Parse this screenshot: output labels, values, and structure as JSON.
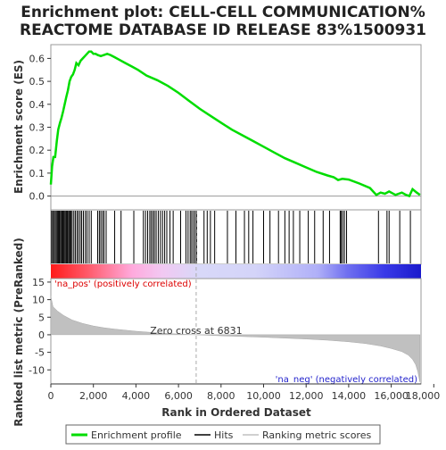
{
  "chart_data": {
    "type": "line",
    "title_line1": "Enrichment plot: CELL-CELL COMMUNICATION%",
    "title_line2": "REACTOME DATABASE ID RELEASE 83%1500931",
    "top_panel": {
      "ylabel": "Enrichment score (ES)",
      "ylim": [
        -0.06,
        0.66
      ],
      "yticks": [
        0.0,
        0.1,
        0.2,
        0.3,
        0.4,
        0.5,
        0.6
      ],
      "series_color": "#00dd00",
      "es_points": [
        [
          0,
          0.05
        ],
        [
          60,
          0.13
        ],
        [
          120,
          0.17
        ],
        [
          200,
          0.17
        ],
        [
          280,
          0.24
        ],
        [
          350,
          0.29
        ],
        [
          430,
          0.32
        ],
        [
          500,
          0.34
        ],
        [
          580,
          0.37
        ],
        [
          650,
          0.4
        ],
        [
          720,
          0.43
        ],
        [
          800,
          0.46
        ],
        [
          880,
          0.5
        ],
        [
          960,
          0.52
        ],
        [
          1040,
          0.53
        ],
        [
          1120,
          0.55
        ],
        [
          1200,
          0.58
        ],
        [
          1300,
          0.57
        ],
        [
          1400,
          0.59
        ],
        [
          1500,
          0.6
        ],
        [
          1600,
          0.61
        ],
        [
          1700,
          0.62
        ],
        [
          1800,
          0.63
        ],
        [
          1900,
          0.63
        ],
        [
          2000,
          0.62
        ],
        [
          2100,
          0.62
        ],
        [
          2200,
          0.615
        ],
        [
          2350,
          0.61
        ],
        [
          2500,
          0.615
        ],
        [
          2650,
          0.62
        ],
        [
          2800,
          0.615
        ],
        [
          3000,
          0.605
        ],
        [
          3200,
          0.595
        ],
        [
          3500,
          0.58
        ],
        [
          3800,
          0.565
        ],
        [
          4100,
          0.55
        ],
        [
          4500,
          0.525
        ],
        [
          5000,
          0.505
        ],
        [
          5500,
          0.48
        ],
        [
          6000,
          0.45
        ],
        [
          6500,
          0.415
        ],
        [
          7000,
          0.38
        ],
        [
          7500,
          0.35
        ],
        [
          8000,
          0.32
        ],
        [
          8500,
          0.29
        ],
        [
          9000,
          0.265
        ],
        [
          9500,
          0.24
        ],
        [
          10000,
          0.215
        ],
        [
          10500,
          0.19
        ],
        [
          11000,
          0.165
        ],
        [
          11500,
          0.145
        ],
        [
          12000,
          0.125
        ],
        [
          12500,
          0.105
        ],
        [
          13000,
          0.09
        ],
        [
          13300,
          0.082
        ],
        [
          13500,
          0.07
        ],
        [
          13700,
          0.075
        ],
        [
          14000,
          0.072
        ],
        [
          14500,
          0.055
        ],
        [
          15000,
          0.035
        ],
        [
          15300,
          0.005
        ],
        [
          15500,
          0.015
        ],
        [
          15700,
          0.01
        ],
        [
          15900,
          0.02
        ],
        [
          16200,
          0.005
        ],
        [
          16500,
          0.015
        ],
        [
          16700,
          0.005
        ],
        [
          16850,
          0.0
        ],
        [
          17000,
          0.03
        ],
        [
          17200,
          0.015
        ],
        [
          17350,
          0.005
        ]
      ]
    },
    "hits_panel": {
      "hit_ranks": [
        40,
        90,
        150,
        210,
        260,
        310,
        360,
        400,
        450,
        500,
        540,
        580,
        620,
        670,
        720,
        760,
        800,
        850,
        900,
        950,
        1000,
        1080,
        1150,
        1230,
        1300,
        1380,
        1450,
        1530,
        1620,
        1700,
        1800,
        1900,
        2200,
        2280,
        2350,
        2430,
        2500,
        2600,
        3000,
        3300,
        3900,
        4350,
        4450,
        4550,
        4650,
        4720,
        4800,
        4870,
        4950,
        5050,
        5150,
        5250,
        5350,
        5450,
        5600,
        5750,
        6100,
        6350,
        6450,
        6550,
        6620,
        6700,
        6780,
        6850,
        7200,
        7350,
        7500,
        7700,
        8300,
        8700,
        9100,
        9300,
        9500,
        10000,
        10300,
        10700,
        11000,
        11200,
        11400,
        11700,
        12100,
        12400,
        12800,
        13100,
        13600,
        13650,
        13720,
        13800,
        13900,
        15400,
        15800,
        15900,
        16400,
        16900
      ],
      "colorbar_stops": [
        [
          0,
          "#ff1a1a"
        ],
        [
          0.1,
          "#ff5a6a"
        ],
        [
          0.22,
          "#ffaadd"
        ],
        [
          0.3,
          "#f2c8f2"
        ],
        [
          0.4,
          "#d8d8f8"
        ],
        [
          0.55,
          "#d4d4f8"
        ],
        [
          0.72,
          "#b0b0f8"
        ],
        [
          0.8,
          "#7070f0"
        ],
        [
          0.9,
          "#3a3ae8"
        ],
        [
          1.0,
          "#1a1acc"
        ]
      ]
    },
    "bottom_panel": {
      "ylabel": "Ranked list metric (PreRanked)",
      "ylim": [
        -14,
        16
      ],
      "yticks": [
        15,
        10,
        5,
        0,
        -5,
        -10
      ],
      "metric_points": [
        [
          0,
          11
        ],
        [
          100,
          8
        ],
        [
          300,
          6.8
        ],
        [
          600,
          5.5
        ],
        [
          1000,
          4.2
        ],
        [
          1500,
          3.2
        ],
        [
          2000,
          2.5
        ],
        [
          2500,
          2.0
        ],
        [
          3000,
          1.6
        ],
        [
          4000,
          1.0
        ],
        [
          5000,
          0.55
        ],
        [
          6000,
          0.2
        ],
        [
          6831,
          0
        ],
        [
          8000,
          -0.3
        ],
        [
          9000,
          -0.5
        ],
        [
          10000,
          -0.7
        ],
        [
          11000,
          -0.95
        ],
        [
          12000,
          -1.2
        ],
        [
          13000,
          -1.55
        ],
        [
          14000,
          -2.0
        ],
        [
          14800,
          -2.5
        ],
        [
          15500,
          -3.2
        ],
        [
          16000,
          -3.9
        ],
        [
          16500,
          -4.8
        ],
        [
          16800,
          -5.8
        ],
        [
          17000,
          -7.0
        ],
        [
          17150,
          -8.5
        ],
        [
          17250,
          -10.5
        ],
        [
          17350,
          -13.5
        ]
      ],
      "zero_cross_rank": 6831,
      "zero_cross_label": "Zero cross at 6831",
      "pos_label": "'na_pos' (positively correlated)",
      "neg_label": "'na_neg' (negatively correlated)"
    },
    "xlabel": "Rank in Ordered Dataset",
    "xlim": [
      0,
      17400
    ],
    "xticks": [
      0,
      2000,
      4000,
      6000,
      8000,
      10000,
      12000,
      14000,
      16000,
      18000
    ],
    "xtick_labels": [
      "0",
      "2,000",
      "4,000",
      "6,000",
      "8,000",
      "10,000",
      "12,000",
      "14,000",
      "16,000",
      "18,000"
    ],
    "legend": [
      {
        "label": "Enrichment profile",
        "color": "#00dd00"
      },
      {
        "label": "Hits",
        "color": "#000000"
      },
      {
        "label": "Ranking metric scores",
        "color": "#c0c0c0"
      }
    ]
  }
}
